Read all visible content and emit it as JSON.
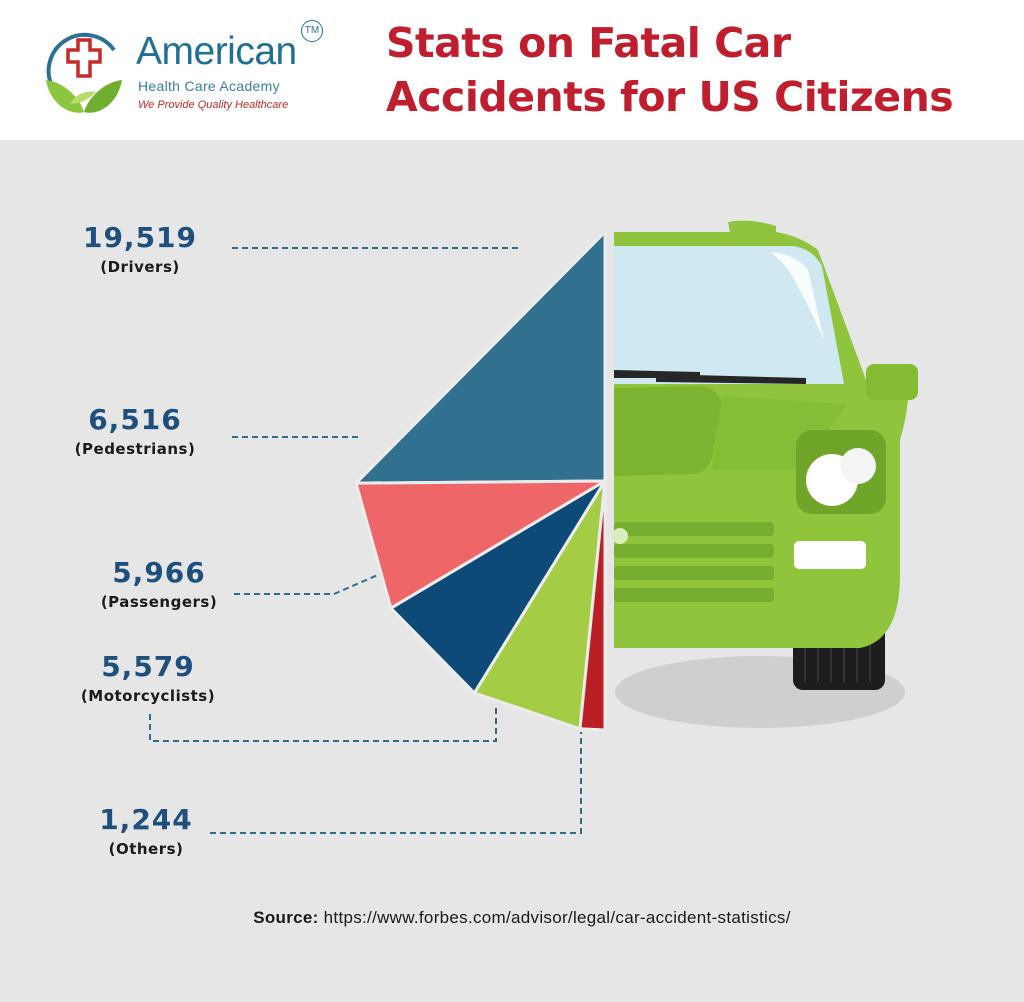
{
  "header": {
    "brand_name": "American",
    "brand_tm": "TM",
    "brand_sub": "Health Care Academy",
    "brand_tag": "We Provide Quality Healthcare",
    "title_line1": "Stats on Fatal Car",
    "title_line2": "Accidents for US Citizens"
  },
  "chart_data": {
    "type": "pie",
    "title": "Stats on Fatal Car Accidents for US Citizens",
    "slices": [
      {
        "label": "(Drivers)",
        "value": 19519,
        "display": "19,519",
        "color": "#31718f"
      },
      {
        "label": "(Pedestrians)",
        "value": 6516,
        "display": "6,516",
        "color": "#ee6667"
      },
      {
        "label": "(Passengers)",
        "value": 5966,
        "display": "5,966",
        "color": "#0e4a78"
      },
      {
        "label": "(Motorcyclists)",
        "value": 5579,
        "display": "5,579",
        "color": "#a4cd45"
      },
      {
        "label": "(Others)",
        "value": 1244,
        "display": "1,244",
        "color": "#b91f25"
      }
    ]
  },
  "colors": {
    "background": "#e6e6e6",
    "title_red": "#bf1e2e",
    "value_blue": "#1f4f7c",
    "car_green": "#8fc43c",
    "leader_line": "#2e6b8c"
  },
  "source": {
    "label": "Source:",
    "text": "https://www.forbes.com/advisor/legal/car-accident-statistics/"
  },
  "icons": {
    "logo": "medical-cross-leaf-logo",
    "car": "car-front-icon"
  }
}
